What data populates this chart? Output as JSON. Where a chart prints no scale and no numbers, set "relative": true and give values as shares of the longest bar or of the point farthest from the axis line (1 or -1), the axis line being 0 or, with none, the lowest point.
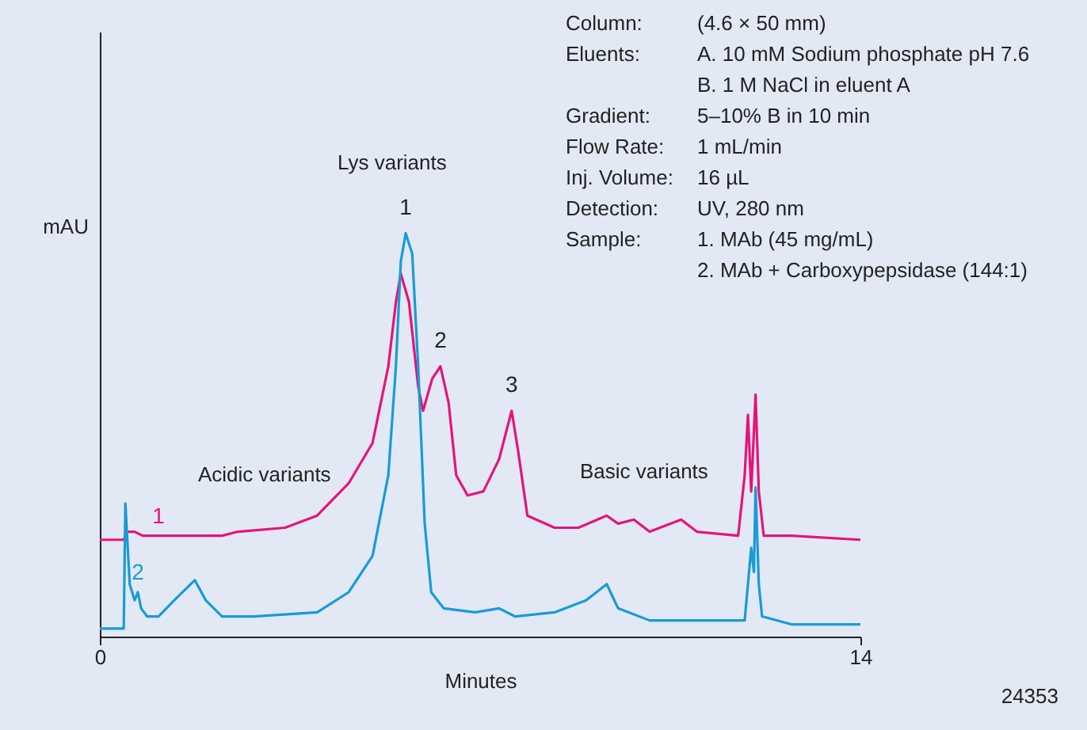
{
  "chart_data": {
    "type": "line",
    "relative": true,
    "xlabel": "Minutes",
    "ylabel": "mAU",
    "xlim": [
      0,
      14
    ],
    "xticks": [
      0,
      14
    ],
    "grid": false,
    "line_style": "solid",
    "series": [
      {
        "name": "1",
        "color": "#e5147a",
        "x": [
          0,
          0.44,
          0.5,
          0.64,
          0.79,
          1.08,
          2.25,
          2.54,
          3.41,
          4.0,
          4.58,
          5.02,
          5.31,
          5.45,
          5.54,
          5.69,
          5.86,
          5.95,
          6.12,
          6.27,
          6.42,
          6.56,
          6.77,
          7.06,
          7.35,
          7.58,
          7.7,
          7.87,
          8.37,
          8.81,
          9.33,
          9.54,
          9.83,
          10.12,
          10.7,
          10.99,
          11.75,
          11.87,
          11.93,
          11.99,
          12.07,
          12.13,
          12.22,
          12.74,
          14.0
        ],
        "values": [
          0.24,
          0.24,
          0.26,
          0.26,
          0.25,
          0.25,
          0.25,
          0.26,
          0.27,
          0.3,
          0.38,
          0.48,
          0.67,
          0.83,
          0.9,
          0.83,
          0.62,
          0.56,
          0.64,
          0.67,
          0.58,
          0.4,
          0.35,
          0.36,
          0.44,
          0.56,
          0.46,
          0.3,
          0.27,
          0.27,
          0.3,
          0.28,
          0.29,
          0.26,
          0.29,
          0.26,
          0.25,
          0.4,
          0.55,
          0.36,
          0.6,
          0.36,
          0.25,
          0.25,
          0.24
        ]
      },
      {
        "name": "2",
        "color": "#1a9ad6",
        "x": [
          0,
          0.44,
          0.47,
          0.55,
          0.64,
          0.7,
          0.76,
          0.87,
          1.08,
          1.37,
          1.75,
          1.95,
          2.25,
          2.83,
          4.0,
          4.58,
          5.02,
          5.31,
          5.45,
          5.54,
          5.63,
          5.75,
          5.86,
          5.98,
          6.1,
          6.33,
          6.91,
          7.35,
          7.64,
          8.37,
          8.95,
          9.33,
          9.54,
          10.12,
          11.29,
          11.87,
          11.99,
          12.04,
          12.07,
          12.13,
          12.19,
          12.74,
          14.0
        ],
        "values": [
          0.02,
          0.02,
          0.33,
          0.13,
          0.09,
          0.11,
          0.07,
          0.05,
          0.05,
          0.09,
          0.14,
          0.09,
          0.05,
          0.05,
          0.06,
          0.11,
          0.2,
          0.4,
          0.67,
          0.93,
          1.0,
          0.95,
          0.67,
          0.28,
          0.11,
          0.07,
          0.06,
          0.07,
          0.05,
          0.06,
          0.09,
          0.13,
          0.07,
          0.04,
          0.04,
          0.04,
          0.22,
          0.16,
          0.37,
          0.13,
          0.05,
          0.03,
          0.03
        ]
      }
    ],
    "annotations": [
      {
        "text": "1",
        "x": 5.63,
        "y": 1.0
      },
      {
        "text": "2",
        "x": 6.27,
        "y": 0.67
      },
      {
        "text": "3",
        "x": 7.58,
        "y": 0.56
      },
      "Lys variants",
      "Acidic variants",
      "Basic variants",
      "Column:\t(4.6 × 50 mm)",
      "Eluents:\tA. 10 mM Sodium phosphate pH 7.6",
      "\tB. 1 M NaCl in eluent A",
      "Gradient:\t5–10% B in 10 min",
      "Flow Rate:\t1 mL/min",
      "Inj. Volume:\t16 µL",
      "Detection:\tUV, 280 nm",
      "Sample:\t1. MAb (45 mg/mL)",
      "\t2. MAb + Carboxypepsidase (144:1)",
      "24353"
    ]
  }
}
